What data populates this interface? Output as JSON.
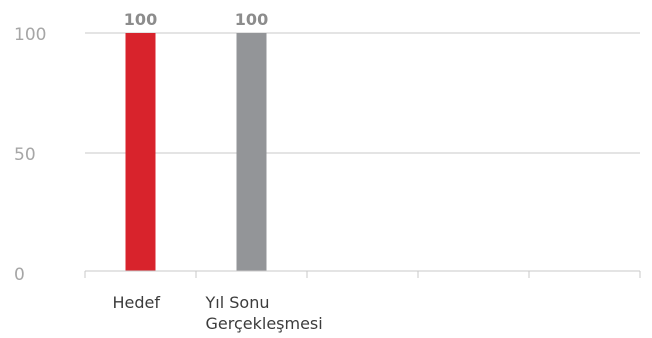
{
  "chart_data": {
    "type": "bar",
    "categories": [
      "Hedef",
      "Yıl Sonu Gerçekleşmesi",
      "",
      "",
      ""
    ],
    "category_lines": [
      [
        "Hedef"
      ],
      [
        "Yıl Sonu",
        "Gerçekleşmesi"
      ],
      [],
      [],
      []
    ],
    "values": [
      100,
      100,
      null,
      null,
      null
    ],
    "data_labels": [
      "100",
      "100",
      "",
      "",
      ""
    ],
    "bar_colors": [
      "#d8232c",
      "#939598"
    ],
    "ylim": [
      0,
      100
    ],
    "yticks": [
      0,
      50,
      100
    ],
    "ytick_labels": [
      "0",
      "50",
      "100"
    ],
    "grid": true,
    "title": "",
    "xlabel": "",
    "ylabel": ""
  }
}
